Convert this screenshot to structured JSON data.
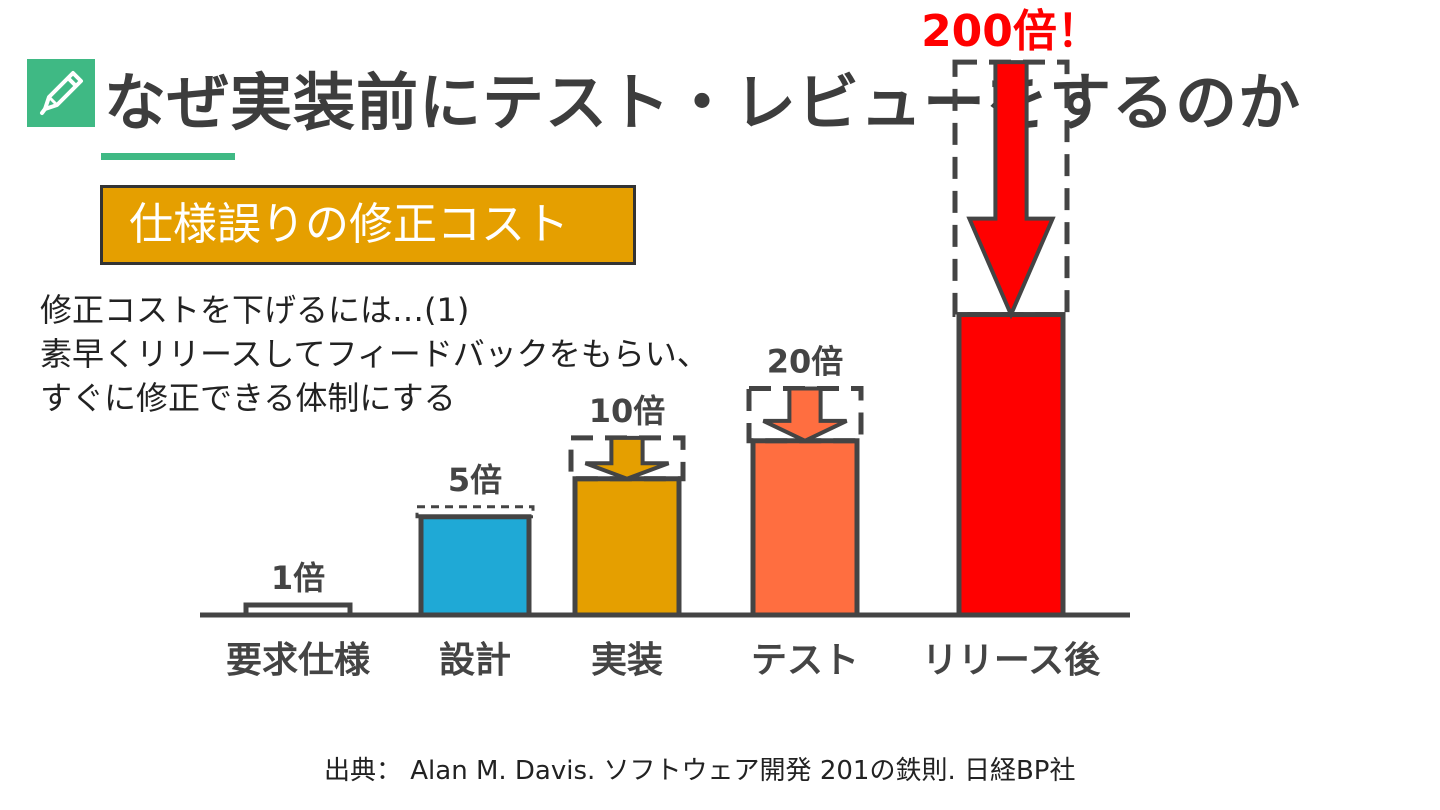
{
  "title": "なぜ実装前にテスト・レビューをするのか",
  "icon": "pencil-icon",
  "subtitle": "仕様誤りの修正コスト",
  "body": {
    "lines": [
      "修正コストを下げるには…(1)",
      "素早くリリースしてフィードバックをもらい、",
      "すぐに修正できる体制にする"
    ]
  },
  "source": "出典： Alan M. Davis. ソフトウェア開発 201の鉄則. 日経BP社",
  "colors": {
    "accent": "#3fb984",
    "subtitle_bg": "#e59f00",
    "bar_requirements": "#ffffff",
    "bar_design": "#1fa9d6",
    "bar_implementation": "#e59f00",
    "bar_test": "#ff6e40",
    "bar_release": "#ff0000",
    "highlight_text": "#ff0000"
  },
  "chart_data": {
    "type": "bar",
    "title": "仕様誤りの修正コスト",
    "categories": [
      "要求仕様",
      "設計",
      "実装",
      "テスト",
      "リリース後"
    ],
    "values": [
      1,
      5,
      10,
      20,
      200
    ],
    "data_labels": [
      "1倍",
      "5倍",
      "10倍",
      "20倍",
      "200倍！"
    ],
    "highlight_index": 4,
    "xlabel": "",
    "ylabel": "",
    "grid": false
  }
}
